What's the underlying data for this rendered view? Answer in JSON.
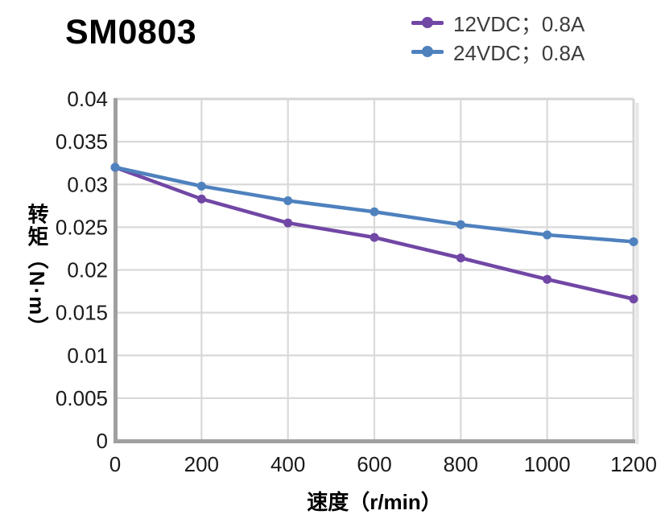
{
  "chart_data": {
    "type": "line",
    "title": "SM0803",
    "xlabel": "速度（r/min）",
    "ylabel": "转矩（N·m）",
    "x": [
      0,
      200,
      400,
      600,
      800,
      1000,
      1200
    ],
    "series": [
      {
        "name": "12VDC；0.8A",
        "color": "#7147A5",
        "marker": "circle",
        "values": [
          0.032,
          0.0283,
          0.0255,
          0.0238,
          0.0214,
          0.0189,
          0.0166
        ]
      },
      {
        "name": "24VDC；0.8A",
        "color": "#4E81BE",
        "marker": "circle",
        "values": [
          0.032,
          0.0298,
          0.0281,
          0.0268,
          0.0253,
          0.0241,
          0.0233
        ]
      }
    ],
    "xlim": [
      0,
      1200
    ],
    "ylim": [
      0,
      0.04
    ],
    "x_ticks": [
      0,
      200,
      400,
      600,
      800,
      1000,
      1200
    ],
    "x_tick_labels": [
      "0",
      "200",
      "400",
      "600",
      "800",
      "1000",
      "1200"
    ],
    "y_ticks": [
      0,
      0.005,
      0.01,
      0.015,
      0.02,
      0.025,
      0.03,
      0.035,
      0.04
    ],
    "y_tick_labels": [
      "0",
      "0.005",
      "0.01",
      "0.015",
      "0.02",
      "0.025",
      "0.03",
      "0.035",
      "0.04"
    ],
    "grid": true,
    "legend_position": "top-right",
    "colors": {
      "axis": "#A0A0A0",
      "gridline": "#D9D9D9",
      "border": "#D4D4D4",
      "border_shadow": "#E6E6E6",
      "tick_label": "#1A1A1A",
      "legend_text": "#3D3D3D",
      "title_text": "#000000"
    }
  }
}
